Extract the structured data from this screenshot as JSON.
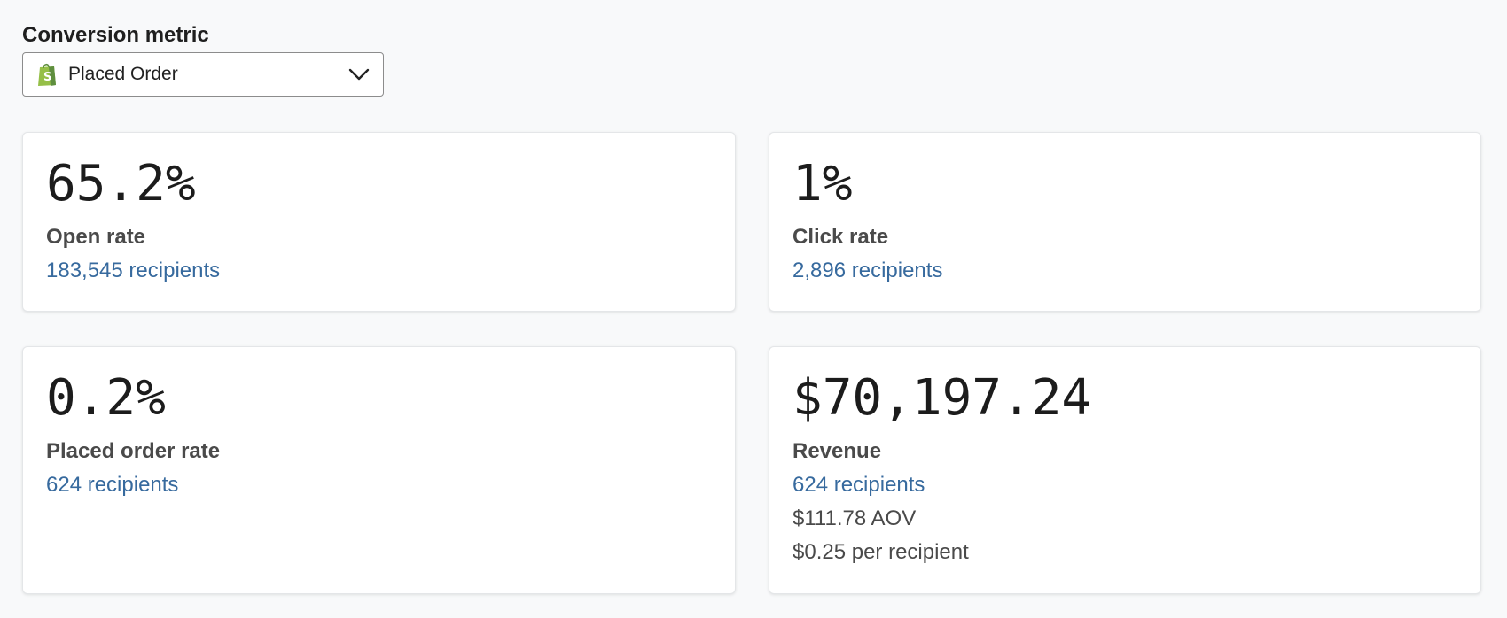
{
  "conversion_metric": {
    "label": "Conversion metric",
    "selected": "Placed Order",
    "icon": "shopify-bag-icon",
    "icon_color": "#95bf47"
  },
  "cards": {
    "open_rate": {
      "value": "65.2%",
      "label": "Open rate",
      "recipients": "183,545 recipients"
    },
    "click_rate": {
      "value": "1%",
      "label": "Click rate",
      "recipients": "2,896 recipients"
    },
    "placed_order_rate": {
      "value": "0.2%",
      "label": "Placed order rate",
      "recipients": "624 recipients"
    },
    "revenue": {
      "value": "$70,197.24",
      "label": "Revenue",
      "recipients": "624 recipients",
      "aov": "$111.78 AOV",
      "per_recipient": "$0.25 per recipient"
    }
  },
  "colors": {
    "link": "#376a9e",
    "background": "#f8f9fa"
  }
}
